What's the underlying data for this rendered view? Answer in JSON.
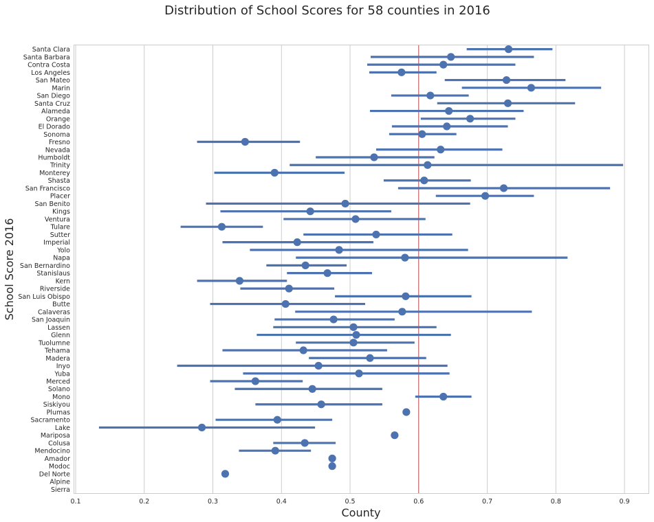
{
  "chart_data": {
    "type": "pointplot-horizontal",
    "title": "Distribution of School Scores for 58 counties in 2016",
    "xlabel": "County",
    "ylabel": "School Score 2016",
    "xlim": [
      0.098,
      0.935
    ],
    "xticks": [
      "0.1",
      "0.2",
      "0.3",
      "0.4",
      "0.5",
      "0.6",
      "0.7",
      "0.8",
      "0.9"
    ],
    "grid": "vertical",
    "reference_line": {
      "x": 0.6,
      "color": "#c44e52"
    },
    "point_color": "#4c72b0",
    "rows": [
      {
        "county": "Santa Clara",
        "mean": 0.731,
        "lo": 0.67,
        "hi": 0.795
      },
      {
        "county": "Santa Barbara",
        "mean": 0.647,
        "lo": 0.53,
        "hi": 0.768
      },
      {
        "county": "Contra Costa",
        "mean": 0.636,
        "lo": 0.525,
        "hi": 0.741
      },
      {
        "county": "Los Angeles",
        "mean": 0.575,
        "lo": 0.528,
        "hi": 0.626
      },
      {
        "county": "San Mateo",
        "mean": 0.728,
        "lo": 0.638,
        "hi": 0.814
      },
      {
        "county": "Marin",
        "mean": 0.764,
        "lo": 0.663,
        "hi": 0.866
      },
      {
        "county": "San Diego",
        "mean": 0.617,
        "lo": 0.56,
        "hi": 0.673
      },
      {
        "county": "Santa Cruz",
        "mean": 0.73,
        "lo": 0.627,
        "hi": 0.828
      },
      {
        "county": "Alameda",
        "mean": 0.644,
        "lo": 0.529,
        "hi": 0.753
      },
      {
        "county": "Orange",
        "mean": 0.675,
        "lo": 0.603,
        "hi": 0.741
      },
      {
        "county": "El Dorado",
        "mean": 0.641,
        "lo": 0.561,
        "hi": 0.73
      },
      {
        "county": "Sonoma",
        "mean": 0.605,
        "lo": 0.557,
        "hi": 0.655
      },
      {
        "county": "Fresno",
        "mean": 0.347,
        "lo": 0.277,
        "hi": 0.427
      },
      {
        "county": "Nevada",
        "mean": 0.632,
        "lo": 0.538,
        "hi": 0.722
      },
      {
        "county": "Humboldt",
        "mean": 0.535,
        "lo": 0.45,
        "hi": 0.623
      },
      {
        "county": "Trinity",
        "mean": 0.613,
        "lo": 0.412,
        "hi": 0.898
      },
      {
        "county": "Monterey",
        "mean": 0.39,
        "lo": 0.302,
        "hi": 0.492
      },
      {
        "county": "Shasta",
        "mean": 0.608,
        "lo": 0.549,
        "hi": 0.676
      },
      {
        "county": "San Francisco",
        "mean": 0.724,
        "lo": 0.57,
        "hi": 0.879
      },
      {
        "county": "Placer",
        "mean": 0.697,
        "lo": 0.625,
        "hi": 0.768
      },
      {
        "county": "San Benito",
        "mean": 0.493,
        "lo": 0.29,
        "hi": 0.675
      },
      {
        "county": "Kings",
        "mean": 0.442,
        "lo": 0.311,
        "hi": 0.56
      },
      {
        "county": "Ventura",
        "mean": 0.508,
        "lo": 0.403,
        "hi": 0.61
      },
      {
        "county": "Tulare",
        "mean": 0.313,
        "lo": 0.253,
        "hi": 0.373
      },
      {
        "county": "Sutter",
        "mean": 0.538,
        "lo": 0.432,
        "hi": 0.649
      },
      {
        "county": "Imperial",
        "mean": 0.423,
        "lo": 0.314,
        "hi": 0.534
      },
      {
        "county": "Yolo",
        "mean": 0.484,
        "lo": 0.354,
        "hi": 0.672
      },
      {
        "county": "Napa",
        "mean": 0.58,
        "lo": 0.421,
        "hi": 0.817
      },
      {
        "county": "San Bernardino",
        "mean": 0.435,
        "lo": 0.378,
        "hi": 0.495
      },
      {
        "county": "Stanislaus",
        "mean": 0.467,
        "lo": 0.408,
        "hi": 0.532
      },
      {
        "county": "Kern",
        "mean": 0.339,
        "lo": 0.277,
        "hi": 0.408
      },
      {
        "county": "Riverside",
        "mean": 0.411,
        "lo": 0.34,
        "hi": 0.477
      },
      {
        "county": "San Luis Obispo",
        "mean": 0.581,
        "lo": 0.478,
        "hi": 0.677
      },
      {
        "county": "Butte",
        "mean": 0.406,
        "lo": 0.296,
        "hi": 0.522
      },
      {
        "county": "Calaveras",
        "mean": 0.576,
        "lo": 0.42,
        "hi": 0.765
      },
      {
        "county": "San Joaquin",
        "mean": 0.476,
        "lo": 0.39,
        "hi": 0.565
      },
      {
        "county": "Lassen",
        "mean": 0.505,
        "lo": 0.388,
        "hi": 0.626
      },
      {
        "county": "Glenn",
        "mean": 0.509,
        "lo": 0.364,
        "hi": 0.647
      },
      {
        "county": "Tuolumne",
        "mean": 0.505,
        "lo": 0.421,
        "hi": 0.594
      },
      {
        "county": "Tehama",
        "mean": 0.432,
        "lo": 0.314,
        "hi": 0.554
      },
      {
        "county": "Madera",
        "mean": 0.529,
        "lo": 0.44,
        "hi": 0.611
      },
      {
        "county": "Inyo",
        "mean": 0.454,
        "lo": 0.248,
        "hi": 0.642
      },
      {
        "county": "Yuba",
        "mean": 0.513,
        "lo": 0.344,
        "hi": 0.645
      },
      {
        "county": "Merced",
        "mean": 0.362,
        "lo": 0.296,
        "hi": 0.431
      },
      {
        "county": "Solano",
        "mean": 0.445,
        "lo": 0.332,
        "hi": 0.547
      },
      {
        "county": "Mono",
        "mean": 0.636,
        "lo": 0.595,
        "hi": 0.677
      },
      {
        "county": "Siskiyou",
        "mean": 0.458,
        "lo": 0.362,
        "hi": 0.547
      },
      {
        "county": "Plumas",
        "mean": 0.582,
        "lo": null,
        "hi": null
      },
      {
        "county": "Sacramento",
        "mean": 0.394,
        "lo": 0.304,
        "hi": 0.474
      },
      {
        "county": "Lake",
        "mean": 0.284,
        "lo": 0.134,
        "hi": 0.449
      },
      {
        "county": "Mariposa",
        "mean": 0.565,
        "lo": null,
        "hi": null
      },
      {
        "county": "Colusa",
        "mean": 0.434,
        "lo": 0.388,
        "hi": 0.479
      },
      {
        "county": "Mendocino",
        "mean": 0.391,
        "lo": 0.338,
        "hi": 0.443
      },
      {
        "county": "Amador",
        "mean": 0.474,
        "lo": null,
        "hi": null
      },
      {
        "county": "Modoc",
        "mean": 0.474,
        "lo": null,
        "hi": null
      },
      {
        "county": "Del Norte",
        "mean": 0.318,
        "lo": null,
        "hi": null
      },
      {
        "county": "Alpine",
        "mean": null,
        "lo": null,
        "hi": null
      },
      {
        "county": "Sierra",
        "mean": null,
        "lo": null,
        "hi": null
      }
    ]
  }
}
